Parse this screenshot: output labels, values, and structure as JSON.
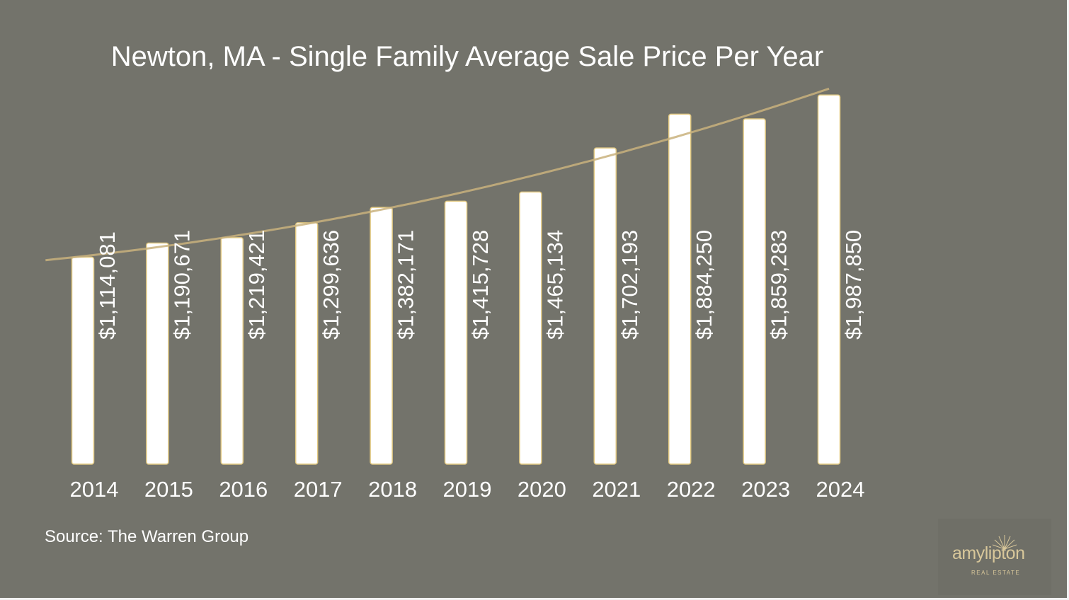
{
  "chart_data": {
    "type": "bar",
    "title": "Newton, MA - Single Family Average Sale Price Per Year",
    "categories": [
      "2014",
      "2015",
      "2016",
      "2017",
      "2018",
      "2019",
      "2020",
      "2021",
      "2022",
      "2023",
      "2024"
    ],
    "values": [
      1114081,
      1190671,
      1219421,
      1299636,
      1382171,
      1415728,
      1465134,
      1702193,
      1884250,
      1859283,
      1987850
    ],
    "data_labels": [
      "$1,114,081",
      "$1,190,671",
      "$1,219,421",
      "$1,299,636",
      "$1,382,171",
      "$1,415,728",
      "$1,465,134",
      "$1,702,193",
      "$1,884,250",
      "$1,859,283",
      "$1,987,850"
    ],
    "trendline": "polynomial",
    "xlabel": "",
    "ylabel": "",
    "ylim": [
      0,
      2000000
    ],
    "grid": false,
    "legend": "none"
  },
  "footer": {
    "source": "Source: The Warren Group"
  },
  "logo": {
    "name": "amylipton",
    "tagline": "REAL ESTATE"
  },
  "colors": {
    "background": "#73736b",
    "bar": "#ffffff",
    "bar_outline": "#e2c982",
    "trend": "#c9b27c",
    "text": "#ffffff",
    "logo": "#d8c79a"
  }
}
